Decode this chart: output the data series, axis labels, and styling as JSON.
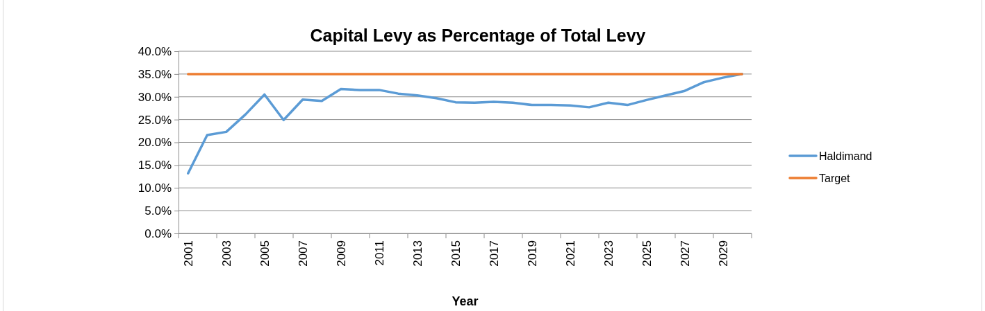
{
  "chart_data": {
    "type": "line",
    "title": "Capital Levy as Percentage of Total Levy",
    "xlabel": "Year",
    "categories": [
      "2001",
      null,
      "2003",
      null,
      "2005",
      null,
      "2007",
      null,
      "2009",
      null,
      "2011",
      null,
      "2013",
      null,
      "2015",
      null,
      "2017",
      null,
      "2019",
      null,
      "2021",
      null,
      "2023",
      null,
      "2025",
      null,
      "2027",
      null,
      "2029",
      null
    ],
    "series": [
      {
        "name": "Haldimand",
        "color": "#5b9bd5",
        "values": [
          13.2,
          21.6,
          22.3,
          26.1,
          30.5,
          24.9,
          29.4,
          29.1,
          31.7,
          31.5,
          31.5,
          30.7,
          30.3,
          29.7,
          28.8,
          28.7,
          28.9,
          28.7,
          28.2,
          28.2,
          28.1,
          27.7,
          28.7,
          28.2,
          29.3,
          30.3,
          31.3,
          33.2,
          34.2,
          35.0
        ]
      },
      {
        "name": "Target",
        "color": "#ed7d31",
        "values": [
          35,
          35,
          35,
          35,
          35,
          35,
          35,
          35,
          35,
          35,
          35,
          35,
          35,
          35,
          35,
          35,
          35,
          35,
          35,
          35,
          35,
          35,
          35,
          35,
          35,
          35,
          35,
          35,
          35,
          35
        ]
      }
    ],
    "ylim": [
      0,
      40
    ],
    "yticks": [
      {
        "value": 0,
        "label": "0.0%"
      },
      {
        "value": 5,
        "label": "5.0%"
      },
      {
        "value": 10,
        "label": "10.0%"
      },
      {
        "value": 15,
        "label": "15.0%"
      },
      {
        "value": 20,
        "label": "20.0%"
      },
      {
        "value": 25,
        "label": "25.0%"
      },
      {
        "value": 30,
        "label": "30.0%"
      },
      {
        "value": 35,
        "label": "35.0%"
      },
      {
        "value": 40,
        "label": "40.0%"
      }
    ],
    "grid": "y",
    "legend": "right",
    "marker": "none",
    "line_style": "solid"
  }
}
